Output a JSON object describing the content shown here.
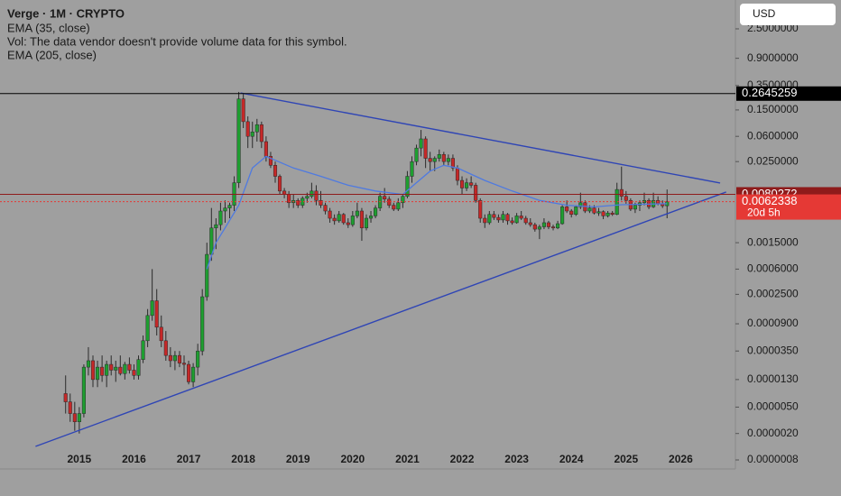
{
  "chart_data": {
    "type": "candlestick",
    "title": "Verge · 1M · CRYPTO",
    "indicators": [
      "EMA (35, close)",
      "Vol: The data vendor doesn't provide volume data for this symbol.",
      "EMA (205, close)"
    ],
    "currency": "USD",
    "yscale": "log",
    "xlim": [
      2013.55,
      2027.0
    ],
    "xticks": [
      2015,
      2016,
      2017,
      2018,
      2019,
      2020,
      2021,
      2022,
      2023,
      2024,
      2025,
      2026
    ],
    "ylim": [
      5.85e-07,
      6.8
    ],
    "yticks": [
      {
        "value": 2.5,
        "label": "2.5000000"
      },
      {
        "value": 0.9,
        "label": "0.9000000"
      },
      {
        "value": 0.35,
        "label": "0.3500000"
      },
      {
        "value": 0.15,
        "label": "0.1500000"
      },
      {
        "value": 0.06,
        "label": "0.0600000"
      },
      {
        "value": 0.025,
        "label": "0.0250000"
      },
      {
        "value": 0.0015,
        "label": "0.0015000"
      },
      {
        "value": 0.0006,
        "label": "0.0006000"
      },
      {
        "value": 0.00025,
        "label": "0.0002500"
      },
      {
        "value": 9e-05,
        "label": "0.0000900"
      },
      {
        "value": 3.5e-05,
        "label": "0.0000350"
      },
      {
        "value": 1.3e-05,
        "label": "0.0000130"
      },
      {
        "value": 5e-06,
        "label": "0.0000050"
      },
      {
        "value": 2e-06,
        "label": "0.0000020"
      },
      {
        "value": 8e-07,
        "label": "0.0000008"
      }
    ],
    "up_color": "#1e9e30",
    "down_color": "#c62828",
    "candles": [
      [
        "2014-10",
        8e-06,
        1.5e-05,
        4e-06,
        6e-06
      ],
      [
        "2014-11",
        6e-06,
        8e-06,
        3e-06,
        4e-06
      ],
      [
        "2014-12",
        4e-06,
        6e-06,
        2.2e-06,
        3e-06
      ],
      [
        "2015-01",
        3e-06,
        5e-06,
        2e-06,
        4e-06
      ],
      [
        "2015-02",
        4e-06,
        2.2e-05,
        3.5e-06,
        2e-05
      ],
      [
        "2015-03",
        2e-05,
        4e-05,
        1.5e-05,
        2.5e-05
      ],
      [
        "2015-04",
        2.5e-05,
        3e-05,
        1e-05,
        1.3e-05
      ],
      [
        "2015-05",
        1.3e-05,
        2.5e-05,
        1e-05,
        2e-05
      ],
      [
        "2015-06",
        2e-05,
        3e-05,
        1.2e-05,
        1.5e-05
      ],
      [
        "2015-07",
        1.5e-05,
        2.5e-05,
        1e-05,
        2.2e-05
      ],
      [
        "2015-08",
        2.2e-05,
        3e-05,
        1.5e-05,
        1.8e-05
      ],
      [
        "2015-09",
        1.8e-05,
        2.5e-05,
        1.2e-05,
        2e-05
      ],
      [
        "2015-10",
        2e-05,
        3e-05,
        1.5e-05,
        1.6e-05
      ],
      [
        "2015-11",
        1.6e-05,
        2.4e-05,
        1.3e-05,
        2.2e-05
      ],
      [
        "2015-12",
        2.2e-05,
        2.8e-05,
        1.6e-05,
        1.8e-05
      ],
      [
        "2016-01",
        1.8e-05,
        2.2e-05,
        1.3e-05,
        1.5e-05
      ],
      [
        "2016-02",
        1.5e-05,
        3e-05,
        1.3e-05,
        2.6e-05
      ],
      [
        "2016-03",
        2.6e-05,
        6e-05,
        2.3e-05,
        5e-05
      ],
      [
        "2016-04",
        5e-05,
        0.00015,
        4e-05,
        0.00012
      ],
      [
        "2016-05",
        0.00012,
        0.0006,
        0.0001,
        0.0002
      ],
      [
        "2016-06",
        0.0002,
        0.0003,
        6e-05,
        8e-05
      ],
      [
        "2016-07",
        8e-05,
        0.00012,
        4e-05,
        5e-05
      ],
      [
        "2016-08",
        5e-05,
        7e-05,
        2.5e-05,
        3e-05
      ],
      [
        "2016-09",
        3e-05,
        4e-05,
        2e-05,
        2.5e-05
      ],
      [
        "2016-10",
        2.5e-05,
        3.5e-05,
        1.8e-05,
        3e-05
      ],
      [
        "2016-11",
        3e-05,
        3.5e-05,
        2e-05,
        2.3e-05
      ],
      [
        "2016-12",
        2.3e-05,
        3e-05,
        1.5e-05,
        2.2e-05
      ],
      [
        "2017-01",
        2.2e-05,
        2.5e-05,
        1.1e-05,
        1.2e-05
      ],
      [
        "2017-02",
        1.2e-05,
        2.3e-05,
        1e-05,
        2e-05
      ],
      [
        "2017-03",
        2e-05,
        4.5e-05,
        1.5e-05,
        3.5e-05
      ],
      [
        "2017-04",
        3.5e-05,
        0.0003,
        3e-05,
        0.00023
      ],
      [
        "2017-05",
        0.00023,
        0.0015,
        0.0002,
        0.001
      ],
      [
        "2017-06",
        0.001,
        0.005,
        0.0008,
        0.0025
      ],
      [
        "2017-07",
        0.0025,
        0.0035,
        0.0012,
        0.0028
      ],
      [
        "2017-08",
        0.0028,
        0.006,
        0.0023,
        0.0045
      ],
      [
        "2017-09",
        0.0045,
        0.0065,
        0.003,
        0.005
      ],
      [
        "2017-10",
        0.005,
        0.006,
        0.0035,
        0.0055
      ],
      [
        "2017-11",
        0.0055,
        0.015,
        0.0045,
        0.012
      ],
      [
        "2017-12",
        0.012,
        0.28,
        0.01,
        0.22
      ],
      [
        "2018-01",
        0.22,
        0.26,
        0.08,
        0.1
      ],
      [
        "2018-02",
        0.1,
        0.12,
        0.04,
        0.06
      ],
      [
        "2018-03",
        0.06,
        0.1,
        0.04,
        0.07
      ],
      [
        "2018-04",
        0.07,
        0.11,
        0.05,
        0.09
      ],
      [
        "2018-05",
        0.09,
        0.1,
        0.04,
        0.05
      ],
      [
        "2018-06",
        0.05,
        0.06,
        0.025,
        0.03
      ],
      [
        "2018-07",
        0.03,
        0.035,
        0.02,
        0.022
      ],
      [
        "2018-08",
        0.022,
        0.025,
        0.012,
        0.015
      ],
      [
        "2018-09",
        0.015,
        0.016,
        0.008,
        0.009
      ],
      [
        "2018-10",
        0.009,
        0.01,
        0.007,
        0.008
      ],
      [
        "2018-11",
        0.008,
        0.009,
        0.005,
        0.006
      ],
      [
        "2018-12",
        0.006,
        0.008,
        0.005,
        0.0065
      ],
      [
        "2019-01",
        0.0065,
        0.007,
        0.005,
        0.0055
      ],
      [
        "2019-02",
        0.0055,
        0.0075,
        0.005,
        0.007
      ],
      [
        "2019-03",
        0.007,
        0.0085,
        0.006,
        0.0075
      ],
      [
        "2019-04",
        0.0075,
        0.012,
        0.007,
        0.009
      ],
      [
        "2019-05",
        0.009,
        0.011,
        0.0055,
        0.0065
      ],
      [
        "2019-06",
        0.0065,
        0.009,
        0.005,
        0.0055
      ],
      [
        "2019-07",
        0.0055,
        0.006,
        0.004,
        0.0045
      ],
      [
        "2019-08",
        0.0045,
        0.005,
        0.003,
        0.0035
      ],
      [
        "2019-09",
        0.0035,
        0.004,
        0.0028,
        0.0032
      ],
      [
        "2019-10",
        0.0032,
        0.0045,
        0.003,
        0.004
      ],
      [
        "2019-11",
        0.004,
        0.0042,
        0.0028,
        0.003
      ],
      [
        "2019-12",
        0.003,
        0.0035,
        0.0025,
        0.0028
      ],
      [
        "2020-01",
        0.0028,
        0.0045,
        0.0026,
        0.0038
      ],
      [
        "2020-02",
        0.0038,
        0.006,
        0.0035,
        0.0045
      ],
      [
        "2020-03",
        0.0045,
        0.005,
        0.0016,
        0.0025
      ],
      [
        "2020-04",
        0.0025,
        0.004,
        0.0023,
        0.0035
      ],
      [
        "2020-05",
        0.0035,
        0.0045,
        0.003,
        0.0038
      ],
      [
        "2020-06",
        0.0038,
        0.0055,
        0.0035,
        0.005
      ],
      [
        "2020-07",
        0.005,
        0.0085,
        0.0045,
        0.0075
      ],
      [
        "2020-08",
        0.0075,
        0.01,
        0.006,
        0.0068
      ],
      [
        "2020-09",
        0.0068,
        0.0075,
        0.005,
        0.0055
      ],
      [
        "2020-10",
        0.0055,
        0.006,
        0.0045,
        0.0048
      ],
      [
        "2020-11",
        0.0048,
        0.007,
        0.0045,
        0.006
      ],
      [
        "2020-12",
        0.006,
        0.008,
        0.005,
        0.0075
      ],
      [
        "2021-01",
        0.0075,
        0.018,
        0.007,
        0.015
      ],
      [
        "2021-02",
        0.015,
        0.03,
        0.012,
        0.025
      ],
      [
        "2021-03",
        0.025,
        0.045,
        0.022,
        0.04
      ],
      [
        "2021-04",
        0.04,
        0.075,
        0.03,
        0.055
      ],
      [
        "2021-05",
        0.055,
        0.06,
        0.02,
        0.028
      ],
      [
        "2021-06",
        0.028,
        0.035,
        0.018,
        0.025
      ],
      [
        "2021-07",
        0.025,
        0.03,
        0.018,
        0.028
      ],
      [
        "2021-08",
        0.028,
        0.038,
        0.025,
        0.032
      ],
      [
        "2021-09",
        0.032,
        0.035,
        0.022,
        0.025
      ],
      [
        "2021-10",
        0.025,
        0.032,
        0.022,
        0.028
      ],
      [
        "2021-11",
        0.028,
        0.032,
        0.018,
        0.02
      ],
      [
        "2021-12",
        0.02,
        0.022,
        0.011,
        0.013
      ],
      [
        "2022-01",
        0.013,
        0.015,
        0.008,
        0.01
      ],
      [
        "2022-02",
        0.01,
        0.014,
        0.009,
        0.012
      ],
      [
        "2022-03",
        0.012,
        0.015,
        0.01,
        0.011
      ],
      [
        "2022-04",
        0.011,
        0.012,
        0.006,
        0.0065
      ],
      [
        "2022-05",
        0.0065,
        0.007,
        0.003,
        0.0035
      ],
      [
        "2022-06",
        0.0035,
        0.004,
        0.0025,
        0.003
      ],
      [
        "2022-07",
        0.003,
        0.0045,
        0.0028,
        0.004
      ],
      [
        "2022-08",
        0.004,
        0.0045,
        0.0033,
        0.0036
      ],
      [
        "2022-09",
        0.0036,
        0.004,
        0.003,
        0.0033
      ],
      [
        "2022-10",
        0.0033,
        0.0045,
        0.003,
        0.004
      ],
      [
        "2022-11",
        0.004,
        0.0042,
        0.0028,
        0.0032
      ],
      [
        "2022-12",
        0.0032,
        0.0036,
        0.0028,
        0.003
      ],
      [
        "2023-01",
        0.003,
        0.0042,
        0.0029,
        0.0038
      ],
      [
        "2023-02",
        0.0038,
        0.0045,
        0.0033,
        0.0035
      ],
      [
        "2023-03",
        0.0035,
        0.0038,
        0.0028,
        0.003
      ],
      [
        "2023-04",
        0.003,
        0.0035,
        0.0026,
        0.0028
      ],
      [
        "2023-05",
        0.0028,
        0.003,
        0.0022,
        0.0024
      ],
      [
        "2023-06",
        0.0024,
        0.0028,
        0.0017,
        0.0026
      ],
      [
        "2023-07",
        0.0026,
        0.0035,
        0.0024,
        0.003
      ],
      [
        "2023-08",
        0.003,
        0.0032,
        0.0024,
        0.0026
      ],
      [
        "2023-09",
        0.0026,
        0.0028,
        0.0023,
        0.0025
      ],
      [
        "2023-10",
        0.0025,
        0.0032,
        0.0024,
        0.0029
      ],
      [
        "2023-11",
        0.0029,
        0.0055,
        0.0028,
        0.0052
      ],
      [
        "2023-12",
        0.0052,
        0.0065,
        0.0042,
        0.0045
      ],
      [
        "2024-01",
        0.0045,
        0.0048,
        0.0036,
        0.004
      ],
      [
        "2024-02",
        0.004,
        0.0055,
        0.0038,
        0.0052
      ],
      [
        "2024-03",
        0.0052,
        0.0085,
        0.0048,
        0.006
      ],
      [
        "2024-04",
        0.006,
        0.0065,
        0.0042,
        0.0045
      ],
      [
        "2024-05",
        0.0045,
        0.0055,
        0.0042,
        0.005
      ],
      [
        "2024-06",
        0.005,
        0.0055,
        0.004,
        0.0042
      ],
      [
        "2024-07",
        0.0042,
        0.005,
        0.0038,
        0.0044
      ],
      [
        "2024-08",
        0.0044,
        0.0046,
        0.0034,
        0.0038
      ],
      [
        "2024-09",
        0.0038,
        0.0045,
        0.0036,
        0.0042
      ],
      [
        "2024-10",
        0.0042,
        0.0045,
        0.0038,
        0.004
      ],
      [
        "2024-11",
        0.004,
        0.012,
        0.0039,
        0.0095
      ],
      [
        "2024-12",
        0.0095,
        0.021,
        0.0065,
        0.0075
      ],
      [
        "2025-01",
        0.0075,
        0.009,
        0.0058,
        0.0065
      ],
      [
        "2025-02",
        0.0065,
        0.007,
        0.0045,
        0.0048
      ],
      [
        "2025-03",
        0.0048,
        0.006,
        0.0042,
        0.0055
      ],
      [
        "2025-04",
        0.0055,
        0.0065,
        0.0045,
        0.006
      ],
      [
        "2025-05",
        0.006,
        0.0085,
        0.0055,
        0.0065
      ],
      [
        "2025-06",
        0.0065,
        0.007,
        0.0048,
        0.0052
      ],
      [
        "2025-07",
        0.0052,
        0.0085,
        0.005,
        0.0065
      ],
      [
        "2025-08",
        0.0065,
        0.0075,
        0.0055,
        0.0058
      ],
      [
        "2025-09",
        0.0058,
        0.0065,
        0.005,
        0.0054
      ],
      [
        "2025-10",
        0.0054,
        0.0095,
        0.0035,
        0.0062
      ]
    ],
    "ema": {
      "color": "#4f7ae0",
      "x": [
        "2017-05",
        "2017-07",
        "2017-09",
        "2017-12",
        "2018-03",
        "2018-06",
        "2018-12",
        "2019-06",
        "2019-12",
        "2020-06",
        "2020-12",
        "2021-03",
        "2021-06",
        "2021-09",
        "2021-12",
        "2022-06",
        "2022-12",
        "2023-06",
        "2023-12",
        "2024-06",
        "2024-12",
        "2025-10"
      ],
      "values": [
        0.0006,
        0.0015,
        0.0025,
        0.0055,
        0.02,
        0.03,
        0.02,
        0.015,
        0.011,
        0.009,
        0.008,
        0.012,
        0.018,
        0.022,
        0.02,
        0.013,
        0.009,
        0.0065,
        0.0055,
        0.0052,
        0.0056,
        0.0058
      ]
    },
    "trendlines": [
      {
        "color": "#2f45b5",
        "x": [
          2017.95,
          2026.72
        ],
        "values": [
          0.27,
          0.0119
        ]
      },
      {
        "color": "#2f45b5",
        "x": [
          2014.2,
          2026.83
        ],
        "values": [
          1.28e-06,
          0.0087
        ]
      }
    ],
    "price_lines": [
      {
        "value": 0.2645259,
        "color": "#000000",
        "style": "solid"
      },
      {
        "value": 0.0080272,
        "color": "#8e1b1b",
        "style": "solid"
      },
      {
        "value": 0.0062338,
        "color": "#e53935",
        "style": "dotted",
        "countdown": "20d 5h"
      }
    ]
  }
}
